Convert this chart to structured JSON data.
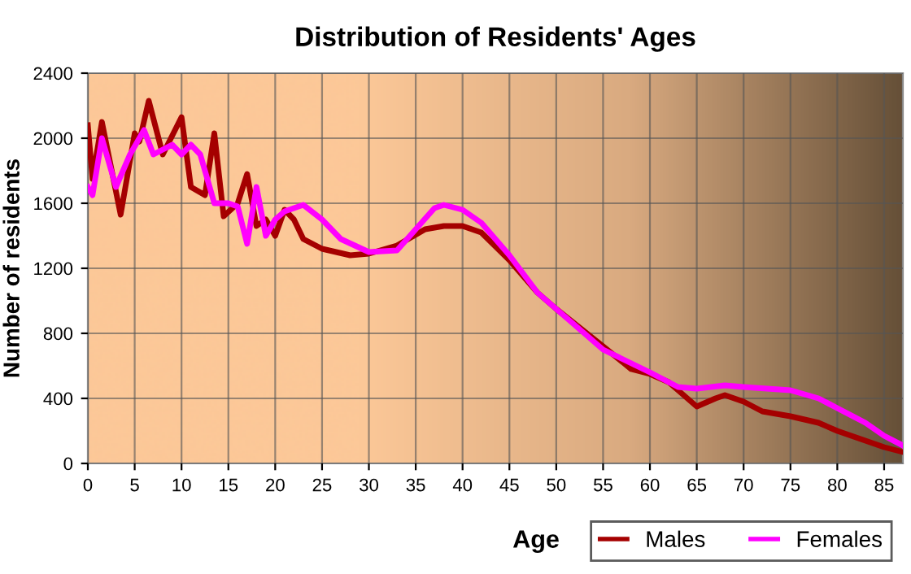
{
  "chart_data": {
    "type": "line",
    "title": "Distribution of Residents' Ages",
    "xlabel": "Age",
    "ylabel": "Number of residents",
    "xlim": [
      0,
      87
    ],
    "xticks": [
      0,
      5,
      10,
      15,
      20,
      25,
      30,
      35,
      40,
      45,
      50,
      55,
      60,
      65,
      70,
      75,
      80,
      85
    ],
    "ylim": [
      0,
      2400
    ],
    "yticks": [
      0,
      400,
      800,
      1200,
      1600,
      2000,
      2400
    ],
    "grid": true,
    "legend": "bottom right",
    "marker": "none",
    "line_style": "solid",
    "series": [
      {
        "name": "Males",
        "color": "#a50000",
        "x": [
          0,
          0.5,
          1.5,
          3.5,
          5,
          5.5,
          6.5,
          8,
          10,
          11,
          12.5,
          13.5,
          14.5,
          16,
          17,
          18,
          19,
          20,
          21,
          22,
          23,
          25,
          28,
          30,
          33,
          36,
          38,
          40,
          42,
          45,
          48,
          50,
          55,
          58,
          60,
          62,
          65,
          67,
          68,
          70,
          72,
          75,
          78,
          80,
          85,
          87
        ],
        "values": [
          2080,
          1750,
          2100,
          1530,
          2030,
          1980,
          2230,
          1900,
          2130,
          1700,
          1650,
          2030,
          1520,
          1600,
          1780,
          1460,
          1500,
          1400,
          1560,
          1500,
          1380,
          1320,
          1280,
          1290,
          1340,
          1440,
          1460,
          1460,
          1420,
          1250,
          1050,
          950,
          720,
          580,
          550,
          500,
          350,
          400,
          420,
          380,
          320,
          290,
          250,
          200,
          100,
          70
        ]
      },
      {
        "name": "Females",
        "color": "#ff00ff",
        "x": [
          0,
          0.5,
          1.5,
          3,
          4.5,
          6,
          7,
          9,
          10,
          11,
          12,
          13.5,
          15,
          16,
          17,
          18,
          19,
          20,
          21,
          23,
          25,
          27,
          30,
          33,
          35,
          37,
          38,
          40,
          42,
          45,
          48,
          50,
          55,
          60,
          63,
          65,
          68,
          70,
          75,
          78,
          80,
          83,
          85,
          87
        ],
        "values": [
          1700,
          1650,
          2000,
          1700,
          1900,
          2050,
          1900,
          1960,
          1900,
          1960,
          1900,
          1600,
          1600,
          1580,
          1350,
          1700,
          1400,
          1500,
          1550,
          1590,
          1500,
          1380,
          1300,
          1310,
          1440,
          1570,
          1590,
          1560,
          1480,
          1280,
          1050,
          950,
          700,
          560,
          470,
          460,
          480,
          470,
          450,
          400,
          340,
          250,
          170,
          110
        ]
      }
    ]
  }
}
